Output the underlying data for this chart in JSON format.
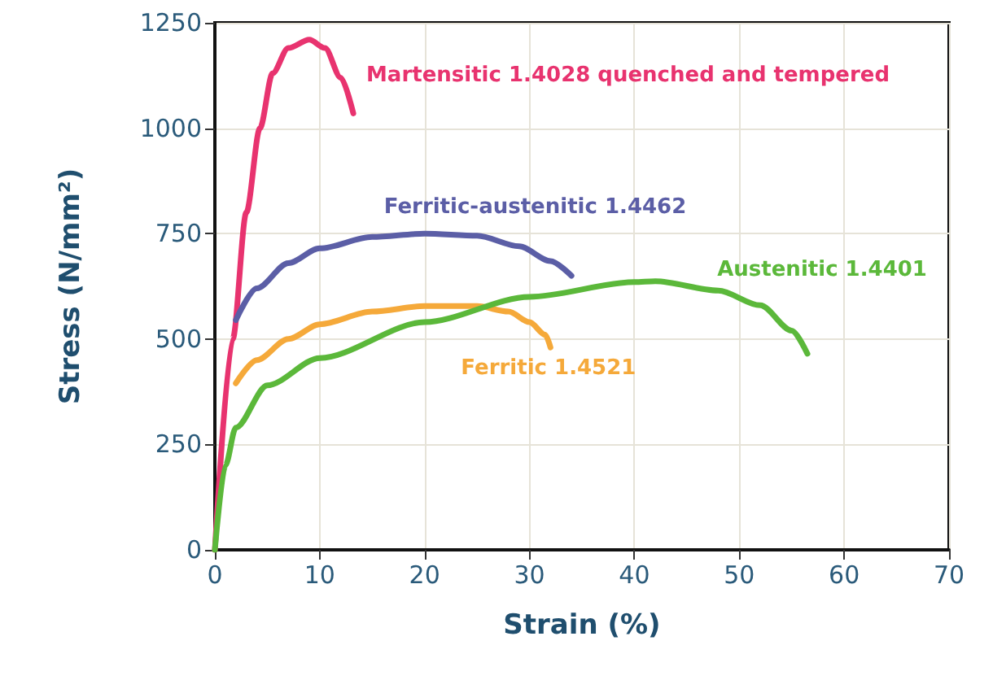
{
  "chart_data": {
    "type": "line",
    "xlabel": "Strain (%)",
    "ylabel": "Stress (N/mm²)",
    "xlim": [
      0,
      70
    ],
    "xticks": [
      0,
      10,
      20,
      30,
      40,
      50,
      60,
      70
    ],
    "ylim": [
      0,
      1250
    ],
    "yticks": [
      0,
      250,
      500,
      750,
      1000,
      1250
    ],
    "grid": true,
    "legend": false,
    "marker": "none",
    "line_style": "solid",
    "series": [
      {
        "name": "Martensitic 1.4028 quenched and tempered",
        "color": "#e8336f",
        "x": [
          0,
          1.7,
          3,
          4.3,
          5.5,
          7,
          9,
          10.5,
          12,
          13.2
        ],
        "values": [
          0,
          500,
          800,
          1000,
          1130,
          1190,
          1210,
          1190,
          1120,
          1035
        ]
      },
      {
        "name": "Ferritic-austenitic 1.4462",
        "color": "#5b5ea6",
        "x": [
          2,
          4,
          7,
          10,
          15,
          20,
          25,
          29,
          32,
          34
        ],
        "values": [
          545,
          620,
          680,
          715,
          742,
          750,
          745,
          720,
          685,
          650
        ]
      },
      {
        "name": "Ferritic 1.4521",
        "color": "#f5a93a",
        "x": [
          2,
          4,
          7,
          10,
          15,
          20,
          25,
          28,
          30,
          31.5,
          32
        ],
        "values": [
          395,
          450,
          500,
          535,
          565,
          578,
          578,
          565,
          540,
          510,
          480
        ]
      },
      {
        "name": "Austenitic 1.4401",
        "color": "#5bb83a",
        "x": [
          0,
          1,
          2,
          5,
          10,
          20,
          30,
          40,
          42,
          48,
          52,
          55,
          56.5
        ],
        "values": [
          0,
          200,
          290,
          390,
          455,
          540,
          600,
          635,
          637,
          615,
          580,
          520,
          465
        ]
      }
    ]
  }
}
